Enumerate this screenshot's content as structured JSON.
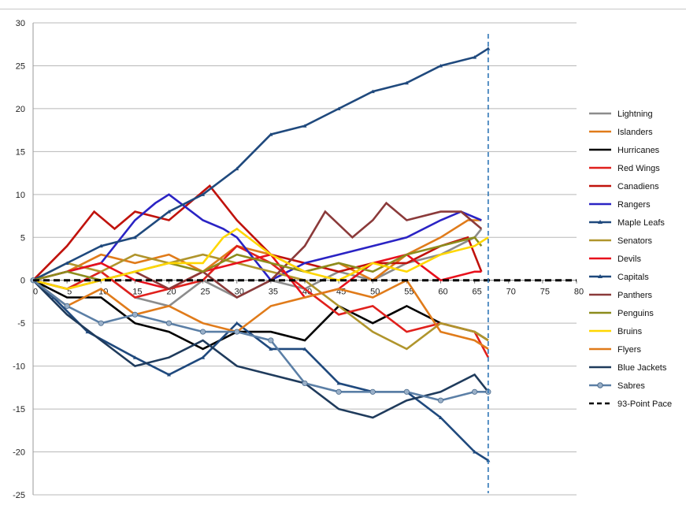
{
  "chart_data": {
    "type": "line",
    "title": "",
    "xlabel": "",
    "ylabel": "",
    "xlim": [
      0,
      80
    ],
    "ylim": [
      -25,
      30
    ],
    "x_ticks": [
      0,
      5,
      10,
      15,
      20,
      25,
      30,
      35,
      40,
      45,
      50,
      55,
      60,
      65,
      70,
      75,
      80
    ],
    "y_ticks": [
      30,
      25,
      20,
      15,
      10,
      5,
      0,
      -5,
      -10,
      -15,
      -20,
      -25
    ],
    "grid": "horizontal",
    "legend_position": "right",
    "reference_line_x": 67,
    "series": [
      {
        "name": "Lightning",
        "color": "#8c8c8c",
        "marker": "none",
        "points": [
          [
            0,
            0
          ],
          [
            5,
            -1
          ],
          [
            10,
            1
          ],
          [
            15,
            -2
          ],
          [
            20,
            -3
          ],
          [
            25,
            0
          ],
          [
            30,
            -2
          ],
          [
            35,
            0
          ],
          [
            40,
            -1
          ],
          [
            45,
            1
          ],
          [
            50,
            0
          ],
          [
            55,
            2
          ],
          [
            60,
            3
          ],
          [
            65,
            5
          ],
          [
            66,
            6
          ]
        ]
      },
      {
        "name": "Islanders",
        "color": "#e07b1a",
        "marker": "none",
        "points": [
          [
            0,
            0
          ],
          [
            5,
            1
          ],
          [
            10,
            3
          ],
          [
            15,
            2
          ],
          [
            20,
            3
          ],
          [
            25,
            1
          ],
          [
            30,
            4
          ],
          [
            35,
            3
          ],
          [
            40,
            1
          ],
          [
            45,
            2
          ],
          [
            50,
            0
          ],
          [
            55,
            3
          ],
          [
            60,
            5
          ],
          [
            64,
            7
          ],
          [
            66,
            7
          ]
        ]
      },
      {
        "name": "Hurricanes",
        "color": "#000000",
        "marker": "none",
        "points": [
          [
            0,
            0
          ],
          [
            5,
            -2
          ],
          [
            10,
            -2
          ],
          [
            15,
            -5
          ],
          [
            20,
            -6
          ],
          [
            25,
            -8
          ],
          [
            30,
            -6
          ],
          [
            35,
            -6
          ],
          [
            40,
            -7
          ],
          [
            45,
            -3
          ],
          [
            50,
            -5
          ],
          [
            55,
            -3
          ],
          [
            60,
            -5
          ],
          [
            65,
            -6
          ],
          [
            67,
            -7
          ]
        ]
      },
      {
        "name": "Red Wings",
        "color": "#e0201c",
        "marker": "none",
        "points": [
          [
            0,
            0
          ],
          [
            5,
            -1
          ],
          [
            10,
            1
          ],
          [
            15,
            -2
          ],
          [
            20,
            -1
          ],
          [
            25,
            0
          ],
          [
            30,
            4
          ],
          [
            35,
            2
          ],
          [
            40,
            -1
          ],
          [
            45,
            -4
          ],
          [
            50,
            -3
          ],
          [
            55,
            -6
          ],
          [
            60,
            -5
          ],
          [
            65,
            -6
          ],
          [
            67,
            -9
          ]
        ]
      },
      {
        "name": "Canadiens",
        "color": "#c0120c",
        "marker": "none",
        "points": [
          [
            0,
            0
          ],
          [
            5,
            4
          ],
          [
            9,
            8
          ],
          [
            12,
            6
          ],
          [
            15,
            8
          ],
          [
            20,
            7
          ],
          [
            26,
            11
          ],
          [
            30,
            7
          ],
          [
            35,
            3
          ],
          [
            40,
            2
          ],
          [
            45,
            1
          ],
          [
            50,
            2
          ],
          [
            55,
            2
          ],
          [
            60,
            4
          ],
          [
            64,
            5
          ],
          [
            66,
            1
          ]
        ]
      },
      {
        "name": "Rangers",
        "color": "#2a23c4",
        "marker": "none",
        "points": [
          [
            0,
            0
          ],
          [
            5,
            1
          ],
          [
            10,
            2
          ],
          [
            15,
            7
          ],
          [
            18,
            9
          ],
          [
            20,
            10
          ],
          [
            25,
            7
          ],
          [
            28,
            6
          ],
          [
            30,
            5
          ],
          [
            35,
            0
          ],
          [
            40,
            2
          ],
          [
            45,
            3
          ],
          [
            50,
            4
          ],
          [
            55,
            5
          ],
          [
            60,
            7
          ],
          [
            63,
            8
          ],
          [
            66,
            7
          ]
        ]
      },
      {
        "name": "Maple Leafs",
        "color": "#1f497d",
        "marker": "triangle",
        "points": [
          [
            0,
            0
          ],
          [
            3,
            -2
          ],
          [
            8,
            -6
          ],
          [
            15,
            -9
          ],
          [
            20,
            -11
          ],
          [
            25,
            -9
          ],
          [
            30,
            -5
          ],
          [
            35,
            -8
          ],
          [
            40,
            -8
          ],
          [
            45,
            -12
          ],
          [
            50,
            -13
          ],
          [
            55,
            -13
          ],
          [
            60,
            -16
          ],
          [
            65,
            -20
          ],
          [
            67,
            -21
          ]
        ]
      },
      {
        "name": "Senators",
        "color": "#b0952c",
        "marker": "none",
        "points": [
          [
            0,
            0
          ],
          [
            5,
            2
          ],
          [
            10,
            1
          ],
          [
            15,
            3
          ],
          [
            20,
            2
          ],
          [
            25,
            3
          ],
          [
            30,
            2
          ],
          [
            35,
            1
          ],
          [
            40,
            0
          ],
          [
            45,
            -3
          ],
          [
            50,
            -6
          ],
          [
            55,
            -8
          ],
          [
            60,
            -5
          ],
          [
            65,
            -6
          ],
          [
            67,
            -7
          ]
        ]
      },
      {
        "name": "Devils",
        "color": "#e8101c",
        "marker": "none",
        "points": [
          [
            0,
            0
          ],
          [
            5,
            1
          ],
          [
            10,
            2
          ],
          [
            15,
            0
          ],
          [
            20,
            -1
          ],
          [
            25,
            1
          ],
          [
            30,
            2
          ],
          [
            35,
            3
          ],
          [
            40,
            -2
          ],
          [
            45,
            -1
          ],
          [
            50,
            2
          ],
          [
            55,
            3
          ],
          [
            60,
            0
          ],
          [
            65,
            1
          ],
          [
            66,
            1
          ]
        ]
      },
      {
        "name": "Capitals",
        "color": "#1f497d",
        "marker": "triangle",
        "points": [
          [
            0,
            0
          ],
          [
            5,
            2
          ],
          [
            10,
            4
          ],
          [
            15,
            5
          ],
          [
            20,
            8
          ],
          [
            25,
            10
          ],
          [
            30,
            13
          ],
          [
            35,
            17
          ],
          [
            40,
            18
          ],
          [
            45,
            20
          ],
          [
            50,
            22
          ],
          [
            55,
            23
          ],
          [
            60,
            25
          ],
          [
            65,
            26
          ],
          [
            67,
            27
          ]
        ]
      },
      {
        "name": "Panthers",
        "color": "#8b3a3a",
        "marker": "none",
        "points": [
          [
            0,
            0
          ],
          [
            5,
            -1
          ],
          [
            10,
            0
          ],
          [
            15,
            1
          ],
          [
            20,
            -1
          ],
          [
            25,
            1
          ],
          [
            30,
            -2
          ],
          [
            35,
            0
          ],
          [
            40,
            4
          ],
          [
            43,
            8
          ],
          [
            47,
            5
          ],
          [
            50,
            7
          ],
          [
            52,
            9
          ],
          [
            55,
            7
          ],
          [
            60,
            8
          ],
          [
            63,
            8
          ],
          [
            66,
            6
          ]
        ]
      },
      {
        "name": "Penguins",
        "color": "#8c8c1c",
        "marker": "none",
        "points": [
          [
            0,
            0
          ],
          [
            5,
            1
          ],
          [
            10,
            0
          ],
          [
            15,
            1
          ],
          [
            20,
            2
          ],
          [
            25,
            1
          ],
          [
            30,
            3
          ],
          [
            35,
            2
          ],
          [
            40,
            1
          ],
          [
            45,
            2
          ],
          [
            50,
            1
          ],
          [
            55,
            3
          ],
          [
            60,
            4
          ],
          [
            65,
            5
          ],
          [
            66,
            4
          ]
        ]
      },
      {
        "name": "Bruins",
        "color": "#ffd700",
        "marker": "none",
        "points": [
          [
            0,
            0
          ],
          [
            5,
            -1
          ],
          [
            10,
            0
          ],
          [
            15,
            1
          ],
          [
            20,
            2
          ],
          [
            25,
            2
          ],
          [
            28,
            5
          ],
          [
            30,
            6
          ],
          [
            35,
            3
          ],
          [
            40,
            1
          ],
          [
            45,
            0
          ],
          [
            50,
            2
          ],
          [
            55,
            1
          ],
          [
            60,
            3
          ],
          [
            65,
            4
          ],
          [
            67,
            5
          ]
        ]
      },
      {
        "name": "Flyers",
        "color": "#e07b1a",
        "marker": "none",
        "points": [
          [
            0,
            0
          ],
          [
            5,
            -3
          ],
          [
            10,
            -1
          ],
          [
            15,
            -4
          ],
          [
            20,
            -3
          ],
          [
            25,
            -5
          ],
          [
            30,
            -6
          ],
          [
            35,
            -3
          ],
          [
            40,
            -2
          ],
          [
            45,
            -1
          ],
          [
            50,
            -2
          ],
          [
            55,
            0
          ],
          [
            60,
            -6
          ],
          [
            65,
            -7
          ],
          [
            67,
            -8
          ]
        ]
      },
      {
        "name": "Blue Jackets",
        "color": "#1f3b5c",
        "marker": "none",
        "points": [
          [
            0,
            0
          ],
          [
            5,
            -4
          ],
          [
            10,
            -7
          ],
          [
            15,
            -10
          ],
          [
            20,
            -9
          ],
          [
            25,
            -7
          ],
          [
            30,
            -10
          ],
          [
            35,
            -11
          ],
          [
            40,
            -12
          ],
          [
            45,
            -15
          ],
          [
            50,
            -16
          ],
          [
            55,
            -14
          ],
          [
            60,
            -13
          ],
          [
            65,
            -11
          ],
          [
            67,
            -13
          ]
        ]
      },
      {
        "name": "Sabres",
        "color": "#5b7fa6",
        "marker": "circle",
        "points": [
          [
            0,
            0
          ],
          [
            5,
            -3
          ],
          [
            10,
            -5
          ],
          [
            15,
            -4
          ],
          [
            20,
            -5
          ],
          [
            25,
            -6
          ],
          [
            30,
            -6
          ],
          [
            35,
            -7
          ],
          [
            40,
            -12
          ],
          [
            45,
            -13
          ],
          [
            50,
            -13
          ],
          [
            55,
            -13
          ],
          [
            60,
            -14
          ],
          [
            65,
            -13
          ],
          [
            67,
            -13
          ]
        ]
      },
      {
        "name": "93-Point Pace",
        "color": "#000000",
        "marker": "none",
        "dashed": true,
        "points": [
          [
            0,
            0
          ],
          [
            80,
            0
          ]
        ]
      }
    ]
  }
}
